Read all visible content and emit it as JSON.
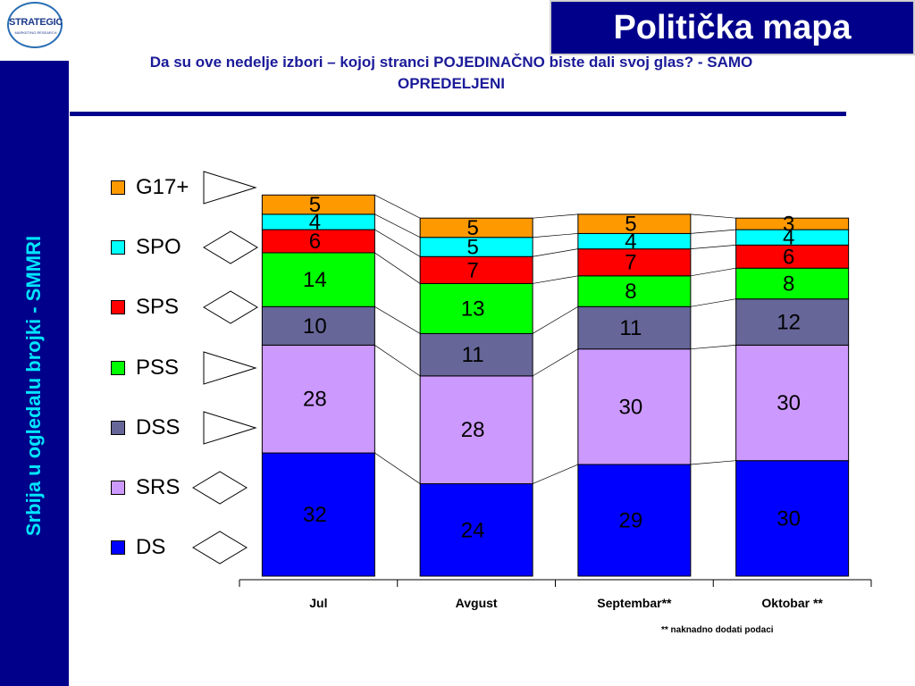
{
  "logo": {
    "text": "STRATEGIC",
    "subtext": "MARKETING RESEARCH"
  },
  "header": {
    "title": "Politička mapa"
  },
  "side": {
    "text": "Srbija u ogledalu brojki - SMMRI"
  },
  "question": {
    "text": "Da su ove nedelje izbori – kojoj stranci POJEDINAČNO biste dali svoj glas? - SAMO OPREDELJENI"
  },
  "footnote": {
    "text": "** naknadno dodati podaci"
  },
  "legend": [
    {
      "label": "G17+",
      "color": "#ff9900"
    },
    {
      "label": "SPO",
      "color": "#00ffff"
    },
    {
      "label": "SPS",
      "color": "#ff0000"
    },
    {
      "label": "PSS",
      "color": "#00ff00"
    },
    {
      "label": "DSS",
      "color": "#666699"
    },
    {
      "label": "SRS",
      "color": "#cc99ff"
    },
    {
      "label": "DS",
      "color": "#0000ff"
    }
  ],
  "chart_data": {
    "type": "bar",
    "stacked": true,
    "categories": [
      "Jul",
      "Avgust",
      "Septembar**",
      "Oktobar **"
    ],
    "series": [
      {
        "name": "DS",
        "color": "#0000ff",
        "values": [
          32,
          24,
          29,
          30
        ]
      },
      {
        "name": "SRS",
        "color": "#cc99ff",
        "values": [
          28,
          28,
          30,
          30
        ]
      },
      {
        "name": "DSS",
        "color": "#666699",
        "values": [
          10,
          11,
          11,
          12
        ]
      },
      {
        "name": "PSS",
        "color": "#00ff00",
        "values": [
          14,
          13,
          8,
          8
        ]
      },
      {
        "name": "SPS",
        "color": "#ff0000",
        "values": [
          6,
          7,
          7,
          6
        ]
      },
      {
        "name": "SPO",
        "color": "#00ffff",
        "values": [
          4,
          5,
          4,
          4
        ]
      },
      {
        "name": "G17+",
        "color": "#ff9900",
        "values": [
          5,
          5,
          5,
          3
        ]
      }
    ],
    "legend_position": "left",
    "grid": false
  }
}
